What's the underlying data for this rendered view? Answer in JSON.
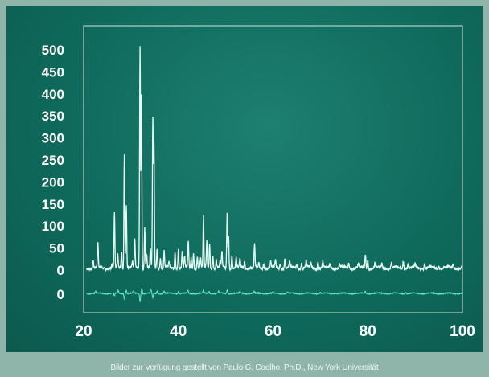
{
  "caption": "Bilder zur Verfügung gestellt von Paulo G. Coelho, Ph.D., New York Universität",
  "colors": {
    "background": "#0f6a5c",
    "frame_border": "#8fb5aa",
    "plot_box": "#cfe3dc",
    "observed_line": "#e8fff6",
    "difference_line": "#5fe3bf",
    "text": "#ffffff"
  },
  "chart_data": {
    "type": "line",
    "title": "",
    "xlabel": "",
    "ylabel": "",
    "xlim": [
      20,
      100
    ],
    "ylim": [
      0,
      520
    ],
    "x_ticks": [
      "20",
      "40",
      "60",
      "80",
      "100"
    ],
    "y_ticks": [
      "500",
      "450",
      "400",
      "350",
      "300",
      "250",
      "200",
      "150",
      "100",
      "50",
      "0"
    ],
    "difference_zero_label": "0",
    "grid": false,
    "legend": "none",
    "series": [
      {
        "role": "observed",
        "baseline": 5,
        "peaks": [
          [
            22.0,
            18
          ],
          [
            23.0,
            55
          ],
          [
            26.0,
            8
          ],
          [
            26.5,
            122
          ],
          [
            27.2,
            30
          ],
          [
            28.0,
            40
          ],
          [
            28.6,
            260
          ],
          [
            29.0,
            145
          ],
          [
            30.3,
            12
          ],
          [
            30.8,
            62
          ],
          [
            31.9,
            505
          ],
          [
            32.2,
            395
          ],
          [
            32.9,
            95
          ],
          [
            33.3,
            30
          ],
          [
            34.1,
            40
          ],
          [
            34.6,
            335
          ],
          [
            34.85,
            280
          ],
          [
            35.5,
            45
          ],
          [
            36.2,
            25
          ],
          [
            37.0,
            40
          ],
          [
            38.0,
            12
          ],
          [
            39.3,
            40
          ],
          [
            40.0,
            45
          ],
          [
            40.8,
            38
          ],
          [
            41.3,
            25
          ],
          [
            42.1,
            60
          ],
          [
            42.7,
            25
          ],
          [
            43.2,
            35
          ],
          [
            44.0,
            28
          ],
          [
            44.7,
            20
          ],
          [
            45.3,
            118
          ],
          [
            46.0,
            60
          ],
          [
            46.6,
            55
          ],
          [
            47.3,
            30
          ],
          [
            48.0,
            20
          ],
          [
            48.8,
            15
          ],
          [
            49.2,
            35
          ],
          [
            50.3,
            125
          ],
          [
            50.6,
            75
          ],
          [
            51.3,
            30
          ],
          [
            52.2,
            22
          ],
          [
            53.0,
            20
          ],
          [
            54.0,
            15
          ],
          [
            56.1,
            55
          ],
          [
            57.0,
            12
          ],
          [
            58.0,
            10
          ],
          [
            59.5,
            15
          ],
          [
            60.5,
            18
          ],
          [
            61.5,
            10
          ],
          [
            62.5,
            22
          ],
          [
            63.5,
            12
          ],
          [
            65.0,
            10
          ],
          [
            66.0,
            12
          ],
          [
            67.0,
            15
          ],
          [
            68.0,
            10
          ],
          [
            69.5,
            18
          ],
          [
            70.5,
            14
          ],
          [
            72.0,
            10
          ],
          [
            74.0,
            8
          ],
          [
            76.0,
            14
          ],
          [
            78.0,
            10
          ],
          [
            79.5,
            32
          ],
          [
            80.0,
            20
          ],
          [
            81.5,
            12
          ],
          [
            83.0,
            10
          ],
          [
            85.0,
            12
          ],
          [
            87.5,
            18
          ],
          [
            88.5,
            10
          ],
          [
            90.0,
            8
          ],
          [
            92.0,
            10
          ],
          [
            95.0,
            8
          ],
          [
            98.0,
            8
          ],
          [
            100.0,
            10
          ]
        ]
      },
      {
        "role": "difference",
        "baseline": 0,
        "peaks": [
          [
            22.5,
            6
          ],
          [
            26.5,
            -8
          ],
          [
            27.3,
            8
          ],
          [
            28.6,
            -14
          ],
          [
            29.0,
            10
          ],
          [
            30.5,
            6
          ],
          [
            31.9,
            -22
          ],
          [
            32.3,
            16
          ],
          [
            34.2,
            10
          ],
          [
            34.6,
            -14
          ],
          [
            35.5,
            6
          ],
          [
            37.0,
            6
          ],
          [
            40.0,
            6
          ],
          [
            42.0,
            8
          ],
          [
            45.3,
            10
          ],
          [
            46.5,
            6
          ],
          [
            48.5,
            6
          ],
          [
            50.3,
            10
          ],
          [
            53.0,
            5
          ],
          [
            56.0,
            5
          ],
          [
            60.0,
            4
          ],
          [
            63.0,
            4
          ],
          [
            70.0,
            4
          ],
          [
            79.5,
            6
          ],
          [
            88.0,
            4
          ]
        ]
      }
    ]
  }
}
